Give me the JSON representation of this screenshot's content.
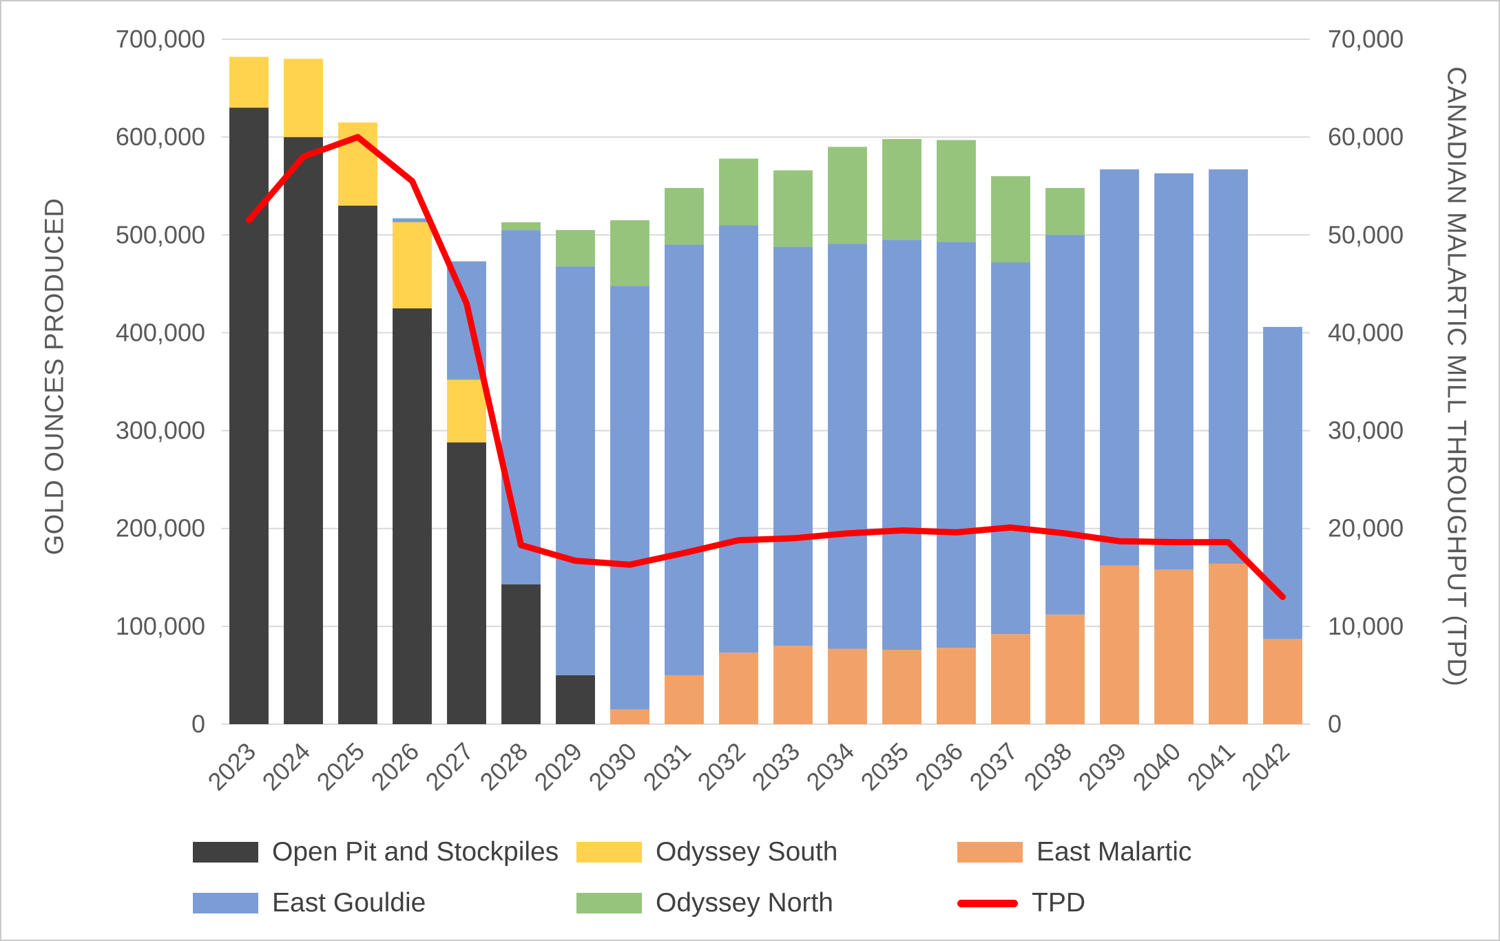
{
  "chart_data": {
    "type": "bar",
    "stacked": true,
    "ylabel_left": "GOLD OUNCES PRODUCED",
    "ylabel_right": "CANADIAN MALARTIC MILL THROUGHPUT (TPD)",
    "ylim_left": [
      0,
      700000
    ],
    "ylim_right": [
      0,
      70000
    ],
    "yticks_left": [
      0,
      100000,
      200000,
      300000,
      400000,
      500000,
      600000,
      700000
    ],
    "yticks_right": [
      0,
      10000,
      20000,
      30000,
      40000,
      50000,
      60000,
      70000
    ],
    "grid": true,
    "gridline_color": "#d9d9d9",
    "categories": [
      2023,
      2024,
      2025,
      2026,
      2027,
      2028,
      2029,
      2030,
      2031,
      2032,
      2033,
      2034,
      2035,
      2036,
      2037,
      2038,
      2039,
      2040,
      2041,
      2042
    ],
    "series": [
      {
        "name": "Open Pit and Stockpiles",
        "color": "#404040",
        "values": [
          630000,
          600000,
          530000,
          425000,
          288000,
          143000,
          50000,
          0,
          0,
          0,
          0,
          0,
          0,
          0,
          0,
          0,
          0,
          0,
          0,
          0
        ]
      },
      {
        "name": "East Malartic",
        "color": "#f2a269",
        "values": [
          0,
          0,
          0,
          0,
          0,
          0,
          0,
          15000,
          50000,
          73000,
          80000,
          77000,
          76000,
          78000,
          92000,
          112000,
          162000,
          158000,
          164000,
          87000
        ]
      },
      {
        "name": "Odyssey South",
        "color": "#ffd34d",
        "values": [
          52000,
          80000,
          85000,
          88000,
          64000,
          0,
          0,
          0,
          0,
          0,
          0,
          0,
          0,
          0,
          0,
          0,
          0,
          0,
          0,
          0
        ]
      },
      {
        "name": "East Gouldie",
        "color": "#7c9cd6",
        "values": [
          0,
          0,
          0,
          4000,
          121000,
          362000,
          418000,
          433000,
          440000,
          437000,
          408000,
          414000,
          419000,
          415000,
          380000,
          388000,
          405000,
          405000,
          403000,
          319000
        ]
      },
      {
        "name": "Odyssey North",
        "color": "#97c47c",
        "values": [
          0,
          0,
          0,
          0,
          0,
          8000,
          37000,
          67000,
          58000,
          68000,
          78000,
          99000,
          103000,
          104000,
          88000,
          48000,
          0,
          0,
          0,
          0
        ]
      }
    ],
    "line": {
      "name": "TPD",
      "color": "#fe0000",
      "axis": "right",
      "values": [
        51500,
        58000,
        60000,
        55500,
        43000,
        18300,
        16700,
        16300,
        17500,
        18800,
        19000,
        19500,
        19800,
        19600,
        20100,
        19500,
        18700,
        18600,
        18600,
        13000
      ]
    }
  },
  "legend": {
    "rows": [
      [
        {
          "label": "Open Pit and Stockpiles",
          "color": "#404040",
          "type": "box"
        },
        {
          "label": "Odyssey South",
          "color": "#ffd34d",
          "type": "box"
        },
        {
          "label": "East Malartic",
          "color": "#f2a269",
          "type": "box"
        }
      ],
      [
        {
          "label": "East Gouldie",
          "color": "#7c9cd6",
          "type": "box"
        },
        {
          "label": "Odyssey North",
          "color": "#97c47c",
          "type": "box"
        },
        {
          "label": "TPD",
          "color": "#fe0000",
          "type": "line"
        }
      ]
    ]
  }
}
